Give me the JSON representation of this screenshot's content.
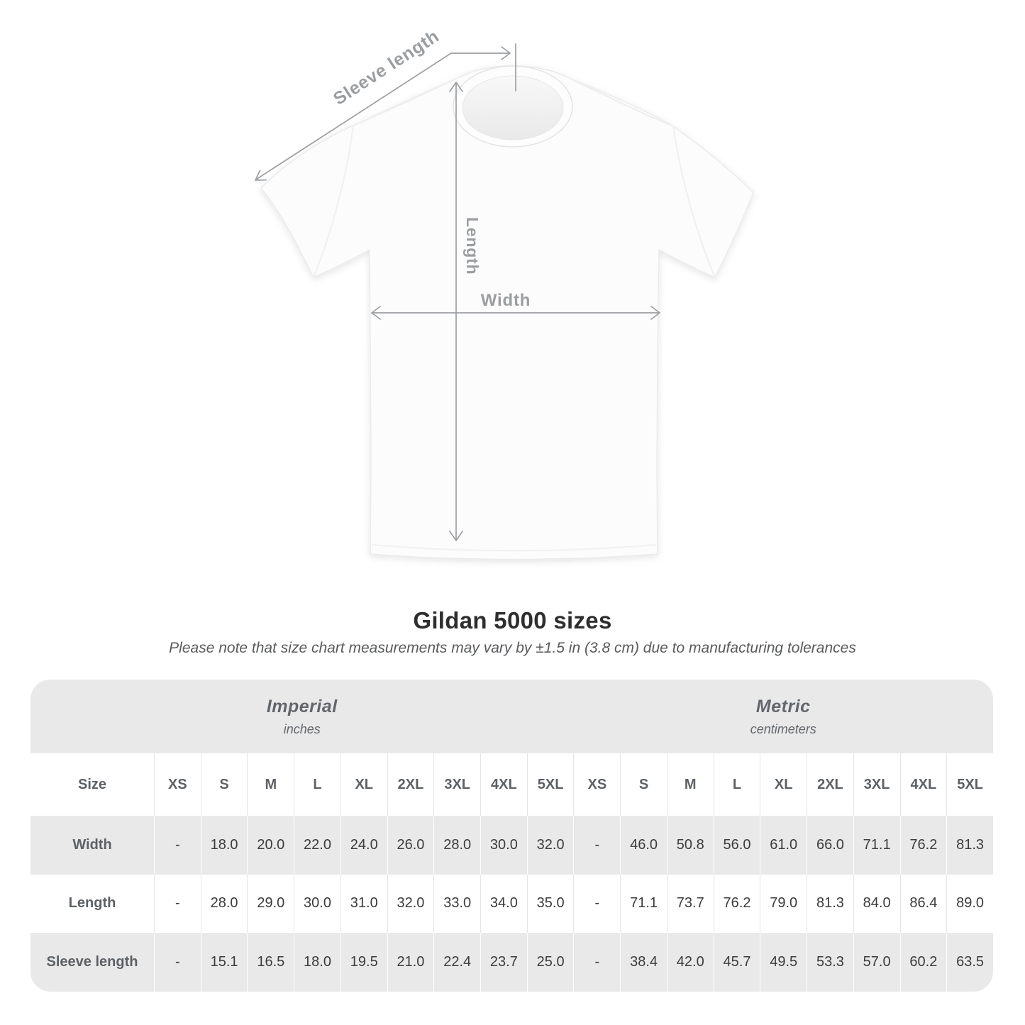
{
  "header": {
    "title": "Gildan 5000 sizes",
    "subtitle": "Please note that size chart measurements may vary by ±1.5 in (3.8 cm) due to manufacturing tolerances"
  },
  "diagram": {
    "sleeve_length_label": "Sleeve length",
    "length_label": "Length",
    "width_label": "Width"
  },
  "chart_data": {
    "type": "table",
    "title": "Gildan 5000 sizes",
    "corner_label": "Size",
    "column_groups": [
      {
        "label": "Imperial",
        "unit": "inches"
      },
      {
        "label": "Metric",
        "unit": "centimeters"
      }
    ],
    "sizes": [
      "XS",
      "S",
      "M",
      "L",
      "XL",
      "2XL",
      "3XL",
      "4XL",
      "5XL"
    ],
    "rows": [
      {
        "label": "Width",
        "imperial": [
          "-",
          "18.0",
          "20.0",
          "22.0",
          "24.0",
          "26.0",
          "28.0",
          "30.0",
          "32.0"
        ],
        "metric": [
          "-",
          "46.0",
          "50.8",
          "56.0",
          "61.0",
          "66.0",
          "71.1",
          "76.2",
          "81.3"
        ]
      },
      {
        "label": "Length",
        "imperial": [
          "-",
          "28.0",
          "29.0",
          "30.0",
          "31.0",
          "32.0",
          "33.0",
          "34.0",
          "35.0"
        ],
        "metric": [
          "-",
          "71.1",
          "73.7",
          "76.2",
          "79.0",
          "81.3",
          "84.0",
          "86.4",
          "89.0"
        ]
      },
      {
        "label": "Sleeve length",
        "imperial": [
          "-",
          "15.1",
          "16.5",
          "18.0",
          "19.5",
          "21.0",
          "22.4",
          "23.7",
          "25.0"
        ],
        "metric": [
          "-",
          "38.4",
          "42.0",
          "45.7",
          "49.5",
          "53.3",
          "57.0",
          "60.2",
          "63.5"
        ]
      }
    ],
    "layout_hints": {
      "row_shading": [
        "gray",
        "white",
        "gray"
      ],
      "banner_background": "#e9e9e9"
    }
  },
  "colors": {
    "banner_gray": "#e9e9e9",
    "heading_text": "#2e2e2e",
    "muted_text": "#63676c",
    "value_text": "#3c3c3c",
    "diagram_gray": "#9b9ea1"
  }
}
